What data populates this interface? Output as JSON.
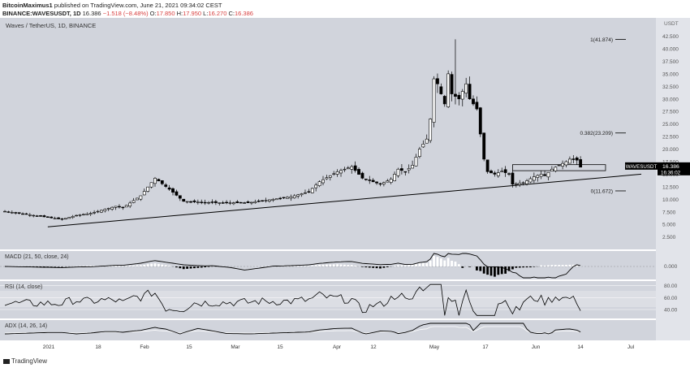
{
  "header": {
    "line1_author": "BitcoinMaximus1",
    "line1_rest": " published on TradingView.com, June 21, 2021 09:34:02 CEST",
    "symbol": "BINANCE:WAVESUSDT, 1D",
    "last": "16.386",
    "change": "−1.518 (−8.48%)",
    "o_label": "O:",
    "o": "17.850",
    "h_label": "H:",
    "h": "17.950",
    "l_label": "L:",
    "l": "16.270",
    "c_label": "C:",
    "c": "16.386"
  },
  "pane_title": "Waves / TetherUS, 1D, BINANCE",
  "price_badge": {
    "symbol": "WAVESUSDT",
    "price": "16.386",
    "countdown": "16:36:02"
  },
  "fib": [
    {
      "label": "1(41.874)",
      "value": 41.874
    },
    {
      "label": "0.382(23.209)",
      "value": 23.209
    },
    {
      "label": "0(11.672)",
      "value": 11.672
    }
  ],
  "currency": "USDT",
  "indicators": {
    "macd": "MACD (21, 50, close, 24)",
    "rsi": "RSI (14, close)",
    "adx": "ADX (14, 26, 14)"
  },
  "footer_brand": "TradingView",
  "colors": {
    "bg_main": "#d1d4dc",
    "bg_alt": "#e2e4ea",
    "candle": "#000000",
    "line": "#000000"
  },
  "chart_data": {
    "type": "candlestick",
    "title": "Waves / TetherUS, 1D, BINANCE",
    "price_ticks": [
      2.5,
      5.0,
      7.5,
      10.0,
      12.5,
      15.0,
      17.5,
      20.0,
      22.5,
      25.0,
      27.5,
      30.0,
      32.5,
      35.0,
      37.5,
      40.0,
      42.5
    ],
    "price_tick_labels": [
      "2.500",
      "5.000",
      "7.500",
      "10.000",
      "12.500",
      "15.000",
      "17.500",
      "20.000",
      "22.500",
      "25.000",
      "27.500",
      "30.000",
      "32.500",
      "35.000",
      "37.500",
      "40.000",
      "42.500"
    ],
    "ylim": [
      0.5,
      45.5
    ],
    "x_tick_labels": [
      "2021",
      "18",
      "Feb",
      "15",
      "Mar",
      "15",
      "Apr",
      "12",
      "May",
      "17",
      "Jun",
      "14",
      "Jul"
    ],
    "close_path": [
      [
        0,
        7.6
      ],
      [
        10,
        6.6
      ],
      [
        16,
        6.0
      ],
      [
        20,
        6.8
      ],
      [
        24,
        7.2
      ],
      [
        31,
        8.6
      ],
      [
        33,
        8.3
      ],
      [
        38,
        10.7
      ],
      [
        42,
        14.2
      ],
      [
        46,
        12.0
      ],
      [
        50,
        9.6
      ],
      [
        55,
        9.4
      ],
      [
        60,
        9.3
      ],
      [
        68,
        9.3
      ],
      [
        75,
        10.0
      ],
      [
        80,
        10.5
      ],
      [
        85,
        11.5
      ],
      [
        88,
        13.5
      ],
      [
        93,
        15.5
      ],
      [
        97,
        16.5
      ],
      [
        100,
        14.2
      ],
      [
        105,
        13.0
      ],
      [
        108,
        14.0
      ],
      [
        110,
        16.0
      ],
      [
        112,
        15.5
      ],
      [
        114,
        16.8
      ],
      [
        116,
        20.0
      ],
      [
        118,
        22.0
      ],
      [
        119,
        26.0
      ],
      [
        120,
        34.0
      ],
      [
        121,
        33.0
      ],
      [
        123,
        29.0
      ],
      [
        124,
        35.0
      ],
      [
        125,
        31.0
      ],
      [
        127,
        30.0
      ],
      [
        129,
        33.0
      ],
      [
        130,
        30.0
      ],
      [
        132,
        28.0
      ],
      [
        134,
        18.0
      ],
      [
        135,
        15.5
      ],
      [
        137,
        15.0
      ],
      [
        139,
        15.6
      ],
      [
        141,
        15.0
      ],
      [
        142,
        13.0
      ],
      [
        145,
        13.3
      ],
      [
        148,
        14.5
      ],
      [
        150,
        15.0
      ],
      [
        151,
        14.7
      ],
      [
        153,
        16.0
      ],
      [
        155,
        16.8
      ],
      [
        157,
        17.5
      ],
      [
        158,
        18.0
      ],
      [
        160,
        17.8
      ],
      [
        161,
        16.4
      ]
    ],
    "trendline": {
      "from": [
        12,
        4.5
      ],
      "to": [
        178,
        15.0
      ]
    },
    "resistance_box": {
      "x_from": 142,
      "x_to": 168,
      "y_low": 15.7,
      "y_high": 16.9
    },
    "macd": {
      "label": "MACD (21, 50, close, 24)",
      "tick": "0.000"
    },
    "rsi": {
      "label": "RSI (14, close)",
      "ticks": [
        "80.00",
        "60.00",
        "40.00"
      ],
      "ticks_values": [
        80,
        60,
        40
      ]
    },
    "adx": {
      "label": "ADX (14, 26, 14)"
    }
  }
}
